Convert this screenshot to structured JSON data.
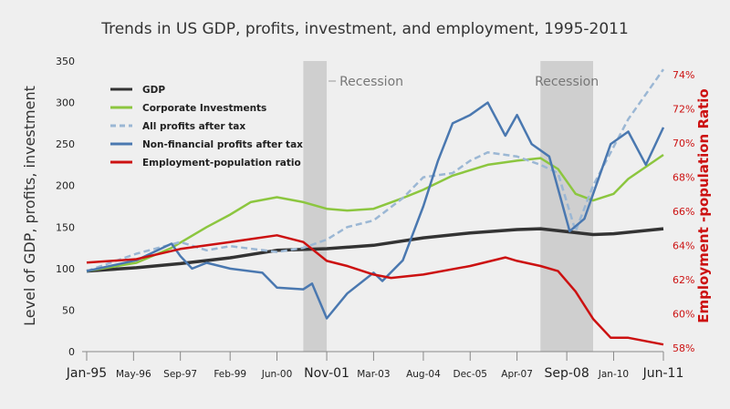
{
  "chart_data": {
    "type": "line",
    "title": "Trends in US GDP, profits, investment, and employment, 1995-2011",
    "ylabel": "Level of GDP, profits, investment",
    "y2label": "Employment -population Ratio",
    "ylim": [
      0,
      350
    ],
    "yticks": [
      0,
      50,
      100,
      150,
      200,
      250,
      300,
      350
    ],
    "y2lim": [
      58,
      74
    ],
    "y2ticks": [
      "58%",
      "60%",
      "62%",
      "64%",
      "66%",
      "68%",
      "70%",
      "72%",
      "74%"
    ],
    "xlim": [
      "1995-01",
      "2011-06"
    ],
    "xticks": [
      {
        "label": "Jan-95",
        "date": "1995-01",
        "major": true
      },
      {
        "label": "May-96",
        "date": "1996-05"
      },
      {
        "label": "Sep-97",
        "date": "1997-09"
      },
      {
        "label": "Feb-99",
        "date": "1999-02"
      },
      {
        "label": "Jun-00",
        "date": "2000-06"
      },
      {
        "label": "Nov-01",
        "date": "2001-11",
        "major": true
      },
      {
        "label": "Mar-03",
        "date": "2003-03"
      },
      {
        "label": "Aug-04",
        "date": "2004-08"
      },
      {
        "label": "Dec-05",
        "date": "2005-12"
      },
      {
        "label": "Apr-07",
        "date": "2007-04"
      },
      {
        "label": "Sep-08",
        "date": "2008-09",
        "major": true
      },
      {
        "label": "Jan-10",
        "date": "2010-01"
      },
      {
        "label": "Jun-11",
        "date": "2011-06",
        "major": true
      }
    ],
    "recessions": [
      {
        "label": "Recession",
        "start": "2001-03",
        "end": "2001-11"
      },
      {
        "label": "Recession",
        "start": "2007-12",
        "end": "2009-06"
      }
    ],
    "legend_position": "top-left",
    "grid": false,
    "series": [
      {
        "name": "GDP",
        "color": "#333333",
        "dash": false,
        "axis": "left",
        "x": [
          "1995-01",
          "1996-06",
          "1997-09",
          "1999-02",
          "2000-06",
          "2001-11",
          "2003-03",
          "2004-08",
          "2005-12",
          "2007-04",
          "2007-12",
          "2009-06",
          "2010-01",
          "2011-06"
        ],
        "values": [
          97,
          101,
          106,
          113,
          122,
          124,
          128,
          137,
          143,
          147,
          148,
          141,
          142,
          148
        ]
      },
      {
        "name": "Corporate Investments",
        "color": "#8cc63f",
        "dash": false,
        "axis": "left",
        "x": [
          "1995-01",
          "1996-06",
          "1997-06",
          "1998-06",
          "1999-02",
          "1999-09",
          "2000-06",
          "2001-03",
          "2001-11",
          "2002-06",
          "2003-03",
          "2004-01",
          "2004-08",
          "2005-06",
          "2006-06",
          "2007-04",
          "2007-12",
          "2008-06",
          "2008-12",
          "2009-06",
          "2010-01",
          "2010-06",
          "2011-06"
        ],
        "values": [
          97,
          107,
          125,
          150,
          165,
          180,
          186,
          180,
          172,
          170,
          172,
          185,
          195,
          212,
          225,
          230,
          233,
          220,
          190,
          182,
          190,
          208,
          237
        ]
      },
      {
        "name": "All profits after tax",
        "color": "#9bb7d4",
        "dash": true,
        "axis": "left",
        "x": [
          "1995-01",
          "1996-06",
          "1997-09",
          "1998-06",
          "1999-02",
          "2000-06",
          "2001-03",
          "2001-11",
          "2002-06",
          "2003-03",
          "2004-01",
          "2004-08",
          "2005-06",
          "2005-12",
          "2006-06",
          "2007-04",
          "2007-12",
          "2008-06",
          "2008-12",
          "2009-06",
          "2010-06",
          "2011-06"
        ],
        "values": [
          97,
          118,
          132,
          122,
          127,
          120,
          125,
          135,
          150,
          158,
          185,
          210,
          215,
          230,
          240,
          235,
          225,
          215,
          145,
          200,
          280,
          340
        ]
      },
      {
        "name": "Non-financial profits after tax",
        "color": "#4a78b0",
        "dash": false,
        "axis": "left",
        "x": [
          "1995-01",
          "1996-06",
          "1997-06",
          "1997-09",
          "1998-01",
          "1998-06",
          "1999-02",
          "2000-01",
          "2000-06",
          "2001-03",
          "2001-06",
          "2001-11",
          "2002-06",
          "2003-03",
          "2003-06",
          "2004-01",
          "2004-08",
          "2005-01",
          "2005-06",
          "2005-12",
          "2006-06",
          "2006-12",
          "2007-04",
          "2007-09",
          "2008-03",
          "2008-10",
          "2009-03",
          "2009-12",
          "2010-06",
          "2010-12",
          "2011-06"
        ],
        "values": [
          97,
          110,
          130,
          115,
          100,
          107,
          100,
          95,
          77,
          75,
          82,
          40,
          70,
          95,
          85,
          110,
          175,
          230,
          275,
          285,
          300,
          260,
          285,
          250,
          235,
          145,
          160,
          250,
          265,
          225,
          270
        ]
      },
      {
        "name": "Employment-population ratio",
        "color": "#cc1111",
        "dash": false,
        "axis": "right",
        "x": [
          "1995-01",
          "1996-06",
          "1997-09",
          "1999-02",
          "2000-06",
          "2001-03",
          "2001-11",
          "2002-06",
          "2003-03",
          "2003-09",
          "2004-08",
          "2005-12",
          "2006-12",
          "2007-04",
          "2007-12",
          "2008-06",
          "2008-12",
          "2009-06",
          "2009-12",
          "2010-06",
          "2011-06"
        ],
        "values": [
          63.0,
          63.2,
          63.8,
          64.2,
          64.6,
          64.2,
          63.1,
          62.8,
          62.3,
          62.1,
          62.3,
          62.8,
          63.3,
          63.1,
          62.8,
          62.5,
          61.3,
          59.7,
          58.6,
          58.6,
          58.2
        ]
      }
    ]
  }
}
